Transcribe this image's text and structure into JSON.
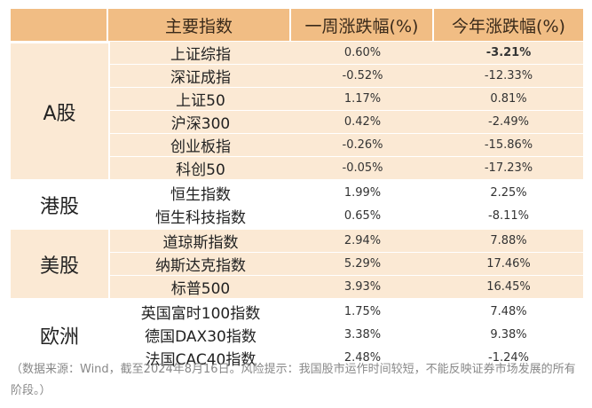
{
  "header": {
    "col_main": "主要指数",
    "col_week": "一周涨跌幅(%)",
    "col_ytd": "今年涨跌幅(%)"
  },
  "groups": [
    {
      "region": "A股",
      "rows": [
        {
          "name": "上证综指",
          "week": "0.60%",
          "ytd": "-3.21%"
        },
        {
          "name": "深证成指",
          "week": "-0.52%",
          "ytd": "-12.33%"
        },
        {
          "name": "上证50",
          "week": "1.17%",
          "ytd": "0.81%"
        },
        {
          "name": "沪深300",
          "week": "0.42%",
          "ytd": "-2.49%"
        },
        {
          "name": "创业板指",
          "week": "-0.26%",
          "ytd": "-15.86%"
        },
        {
          "name": "科创50",
          "week": "-0.05%",
          "ytd": "-17.23%"
        }
      ]
    },
    {
      "region": "港股",
      "rows": [
        {
          "name": "恒生指数",
          "week": "1.99%",
          "ytd": "2.25%"
        },
        {
          "name": "恒生科技指数",
          "week": "0.65%",
          "ytd": "-8.11%"
        }
      ]
    },
    {
      "region": "美股",
      "rows": [
        {
          "name": "道琼斯指数",
          "week": "2.94%",
          "ytd": "7.88%"
        },
        {
          "name": "纳斯达克指数",
          "week": "5.29%",
          "ytd": "17.46%"
        },
        {
          "name": "标普500",
          "week": "3.93%",
          "ytd": "16.45%"
        }
      ]
    },
    {
      "region": "欧洲",
      "rows": [
        {
          "name": "英国富时100指数",
          "week": "1.75%",
          "ytd": "7.48%"
        },
        {
          "name": "德国DAX30指数",
          "week": "3.38%",
          "ytd": "9.38%"
        },
        {
          "name": "法国CAC40指数",
          "week": "2.48%",
          "ytd": "-1.24%"
        }
      ]
    }
  ],
  "footnote": "（数据来源：Wind，截至2024年8月16日。风险提示：我国股市运作时间较短，不能反映证券市场发展的所有阶段。）",
  "colors": {
    "header": "#f1bd84",
    "light": "#fbe9d4",
    "white": "#ffffff"
  }
}
